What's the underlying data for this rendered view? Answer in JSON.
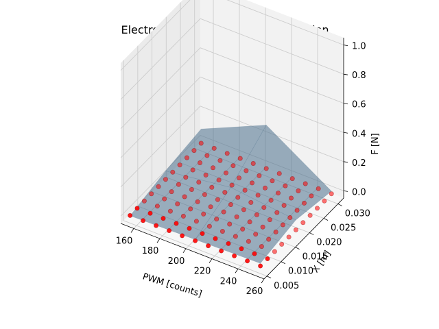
{
  "chart_data": {
    "type": "scatter",
    "title": "Electromagnet Force Characterization",
    "xlabel": "PWM [counts]",
    "ylabel": "X [m]",
    "zlabel": "F [N]",
    "x_ticks": [
      "160",
      "180",
      "200",
      "220",
      "240",
      "260"
    ],
    "y_ticks": [
      "0.005",
      "0.010",
      "0.015",
      "0.020",
      "0.025",
      "0.030"
    ],
    "z_ticks": [
      "0.0",
      "0.2",
      "0.4",
      "0.6",
      "0.8",
      "1.0"
    ],
    "xlim": [
      150,
      260
    ],
    "ylim": [
      0.004,
      0.032
    ],
    "zlim": [
      -0.05,
      1.05
    ],
    "grid": true,
    "colors": {
      "points": "#ff0000",
      "surface": "#4a6f8c",
      "pane_left": "#ebebeb",
      "pane_back": "#f2f2f2",
      "pane_floor": "#f7f7f7",
      "grid": "#cccccc"
    },
    "point_grid": {
      "x": [
        155,
        165,
        175,
        185,
        195,
        205,
        215,
        225,
        235,
        245,
        255
      ],
      "y": [
        0.005,
        0.0075,
        0.01,
        0.0125,
        0.015,
        0.0175,
        0.02,
        0.0225,
        0.025,
        0.0275,
        0.03
      ]
    },
    "surface_grid": {
      "x": [
        155,
        205,
        255
      ],
      "y": [
        0.005,
        0.0175,
        0.03
      ],
      "z": [
        [
          0.0,
          0.01,
          0.02
        ],
        [
          0.06,
          0.12,
          0.07
        ],
        [
          0.1,
          0.3,
          0.02
        ]
      ]
    }
  }
}
